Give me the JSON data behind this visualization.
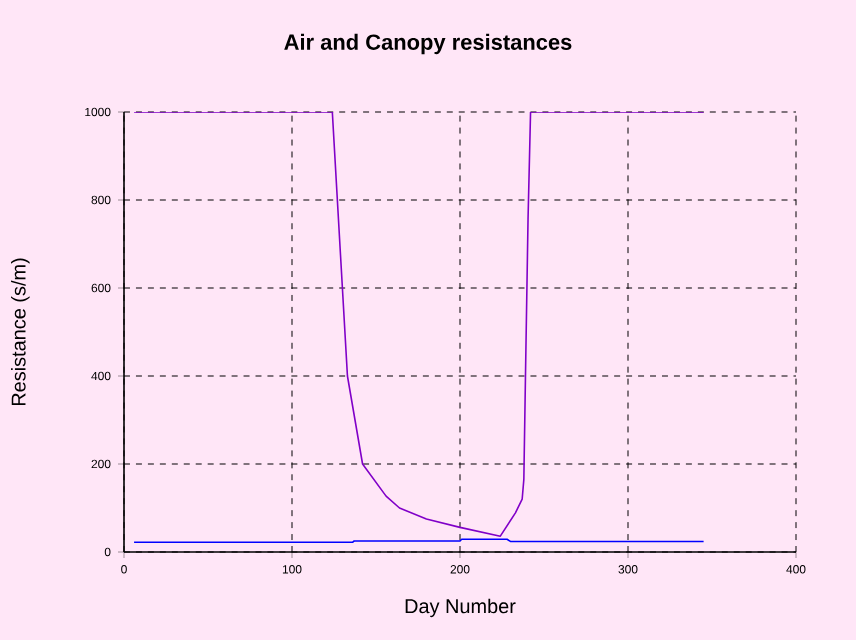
{
  "chart_data": {
    "type": "line",
    "title": "Air and Canopy resistances",
    "xlabel": "Day Number",
    "ylabel": "Resistance (s/m)",
    "xlim": [
      0,
      400
    ],
    "ylim": [
      0,
      1000
    ],
    "xticks": [
      0,
      100,
      200,
      300,
      400
    ],
    "yticks": [
      0,
      200,
      400,
      600,
      800,
      1000
    ],
    "grid": true,
    "series": [
      {
        "color": "#8000c8",
        "x": [
          6,
          124,
          127,
          130,
          133,
          142,
          156,
          164,
          180,
          200,
          224,
          233,
          237,
          238,
          239,
          240.5,
          242,
          345
        ],
        "values": [
          1000,
          1000,
          800,
          600,
          400,
          200,
          127,
          100,
          75,
          56,
          36,
          89,
          120,
          165,
          407,
          756,
          1000,
          1000
        ]
      },
      {
        "color": "#0000ff",
        "x": [
          6,
          136,
          137,
          200,
          201,
          228,
          230,
          345
        ],
        "values": [
          22,
          22,
          25,
          25,
          29,
          29,
          24,
          24
        ]
      }
    ]
  }
}
